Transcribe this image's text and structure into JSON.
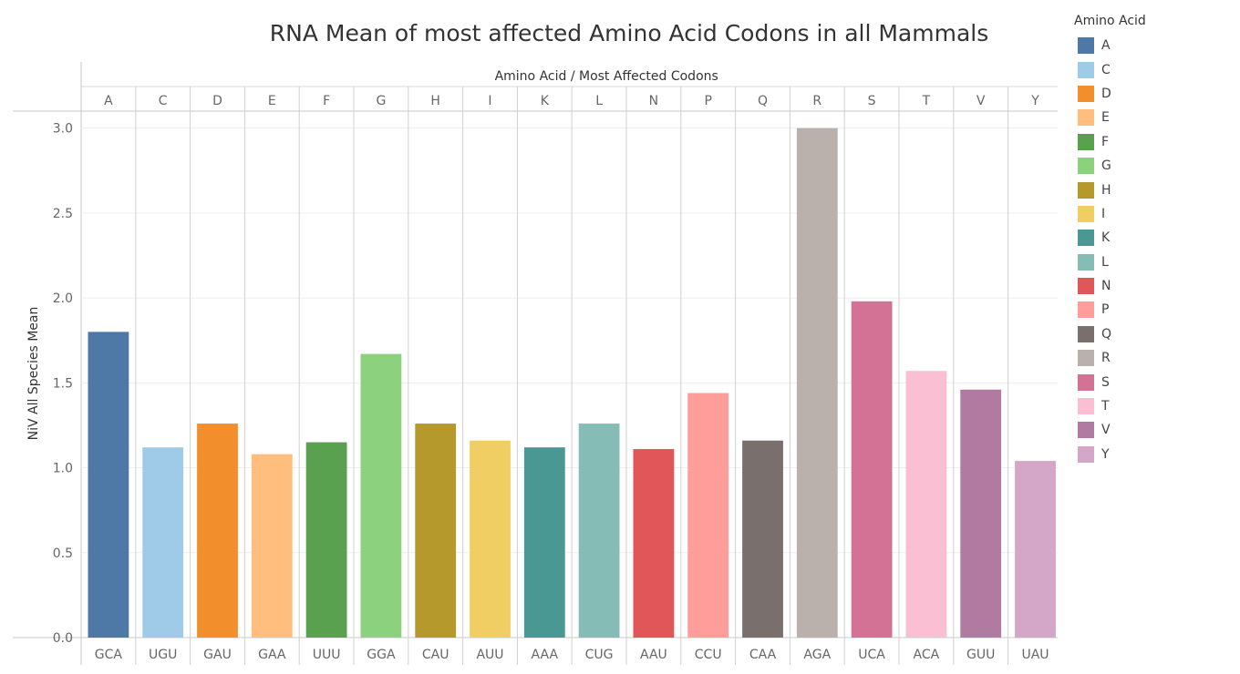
{
  "chart_data": {
    "type": "bar",
    "title": "RNA Mean of most affected Amino Acid Codons in all Mammals",
    "column_header": "Amino Acid / Most Affected Codons",
    "ylabel": "NiV All Species Mean",
    "ylim": [
      0,
      3.1
    ],
    "yticks": [
      "0.0",
      "0.5",
      "1.0",
      "1.5",
      "2.0",
      "2.5",
      "3.0"
    ],
    "grid": true,
    "legend_title": "Amino Acid",
    "legend_position": "right",
    "amino_acids": [
      "A",
      "C",
      "D",
      "E",
      "F",
      "G",
      "H",
      "I",
      "K",
      "L",
      "N",
      "P",
      "Q",
      "R",
      "S",
      "T",
      "V",
      "Y"
    ],
    "codons": [
      "GCA",
      "UGU",
      "GAU",
      "GAA",
      "UUU",
      "GGA",
      "CAU",
      "AUU",
      "AAA",
      "CUG",
      "AAU",
      "CCU",
      "CAA",
      "AGA",
      "UCA",
      "ACA",
      "GUU",
      "UAU"
    ],
    "values": [
      1.8,
      1.12,
      1.26,
      1.08,
      1.15,
      1.67,
      1.26,
      1.16,
      1.12,
      1.26,
      1.11,
      1.44,
      1.16,
      3.0,
      1.98,
      1.57,
      1.46,
      1.04
    ],
    "colors": [
      "#4e79a7",
      "#a0cbe8",
      "#f28e2b",
      "#ffbe7d",
      "#59a14f",
      "#8cd17d",
      "#b6992d",
      "#f1ce63",
      "#499894",
      "#86bcb6",
      "#e15759",
      "#ff9d9a",
      "#79706e",
      "#bab0ac",
      "#d37295",
      "#fabfd2",
      "#b07aa1",
      "#d4a6c8"
    ]
  }
}
